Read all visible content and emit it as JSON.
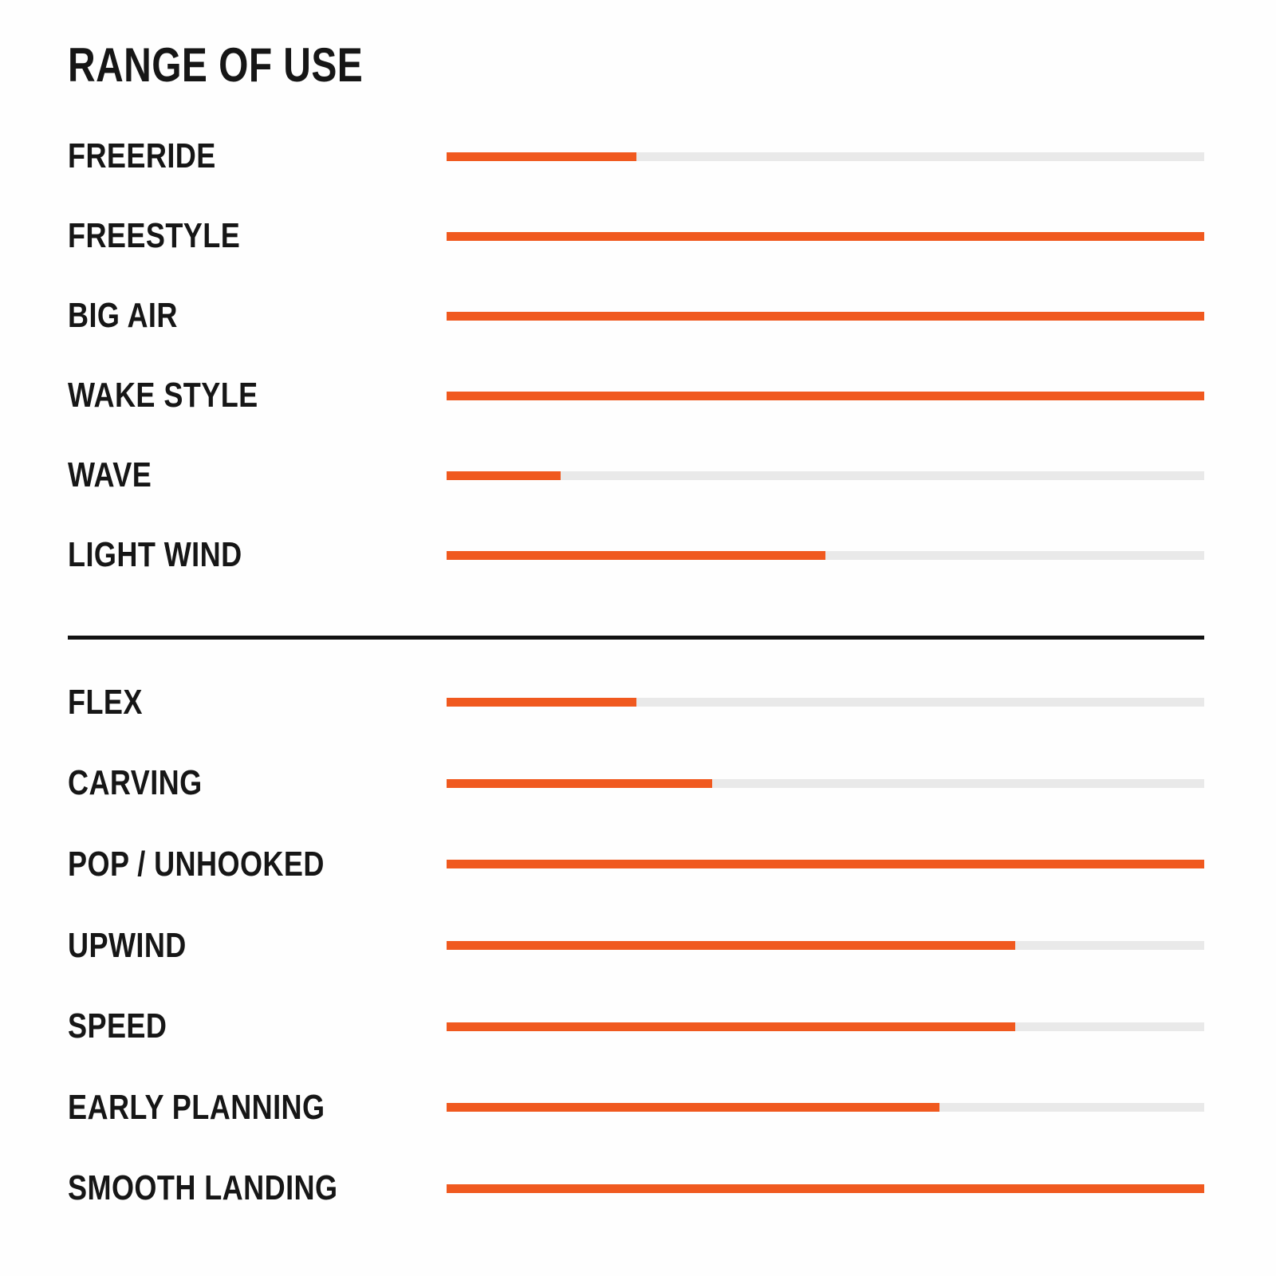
{
  "colors": {
    "bar_fill": "#F0591F",
    "bar_track": "#E9E9E9",
    "text": "#161616",
    "divider": "#121212",
    "background": "#FEFEFE"
  },
  "chart_data": {
    "type": "bar",
    "orientation": "horizontal",
    "title": "RANGE OF USE",
    "value_unit": "percent",
    "value_range": [
      0,
      100
    ],
    "grid": false,
    "legend": false,
    "axis_labels": false,
    "sections": [
      {
        "categories": [
          "FREERIDE",
          "FREESTYLE",
          "BIG AIR",
          "WAKE STYLE",
          "WAVE",
          "LIGHT WIND"
        ],
        "values": [
          25,
          100,
          100,
          100,
          15,
          50
        ]
      },
      {
        "categories": [
          "FLEX",
          "CARVING",
          "POP / UNHOOKED",
          "UPWIND",
          "SPEED",
          "EARLY PLANNING",
          "SMOOTH LANDING"
        ],
        "values": [
          25,
          35,
          100,
          75,
          75,
          65,
          100
        ]
      }
    ]
  }
}
